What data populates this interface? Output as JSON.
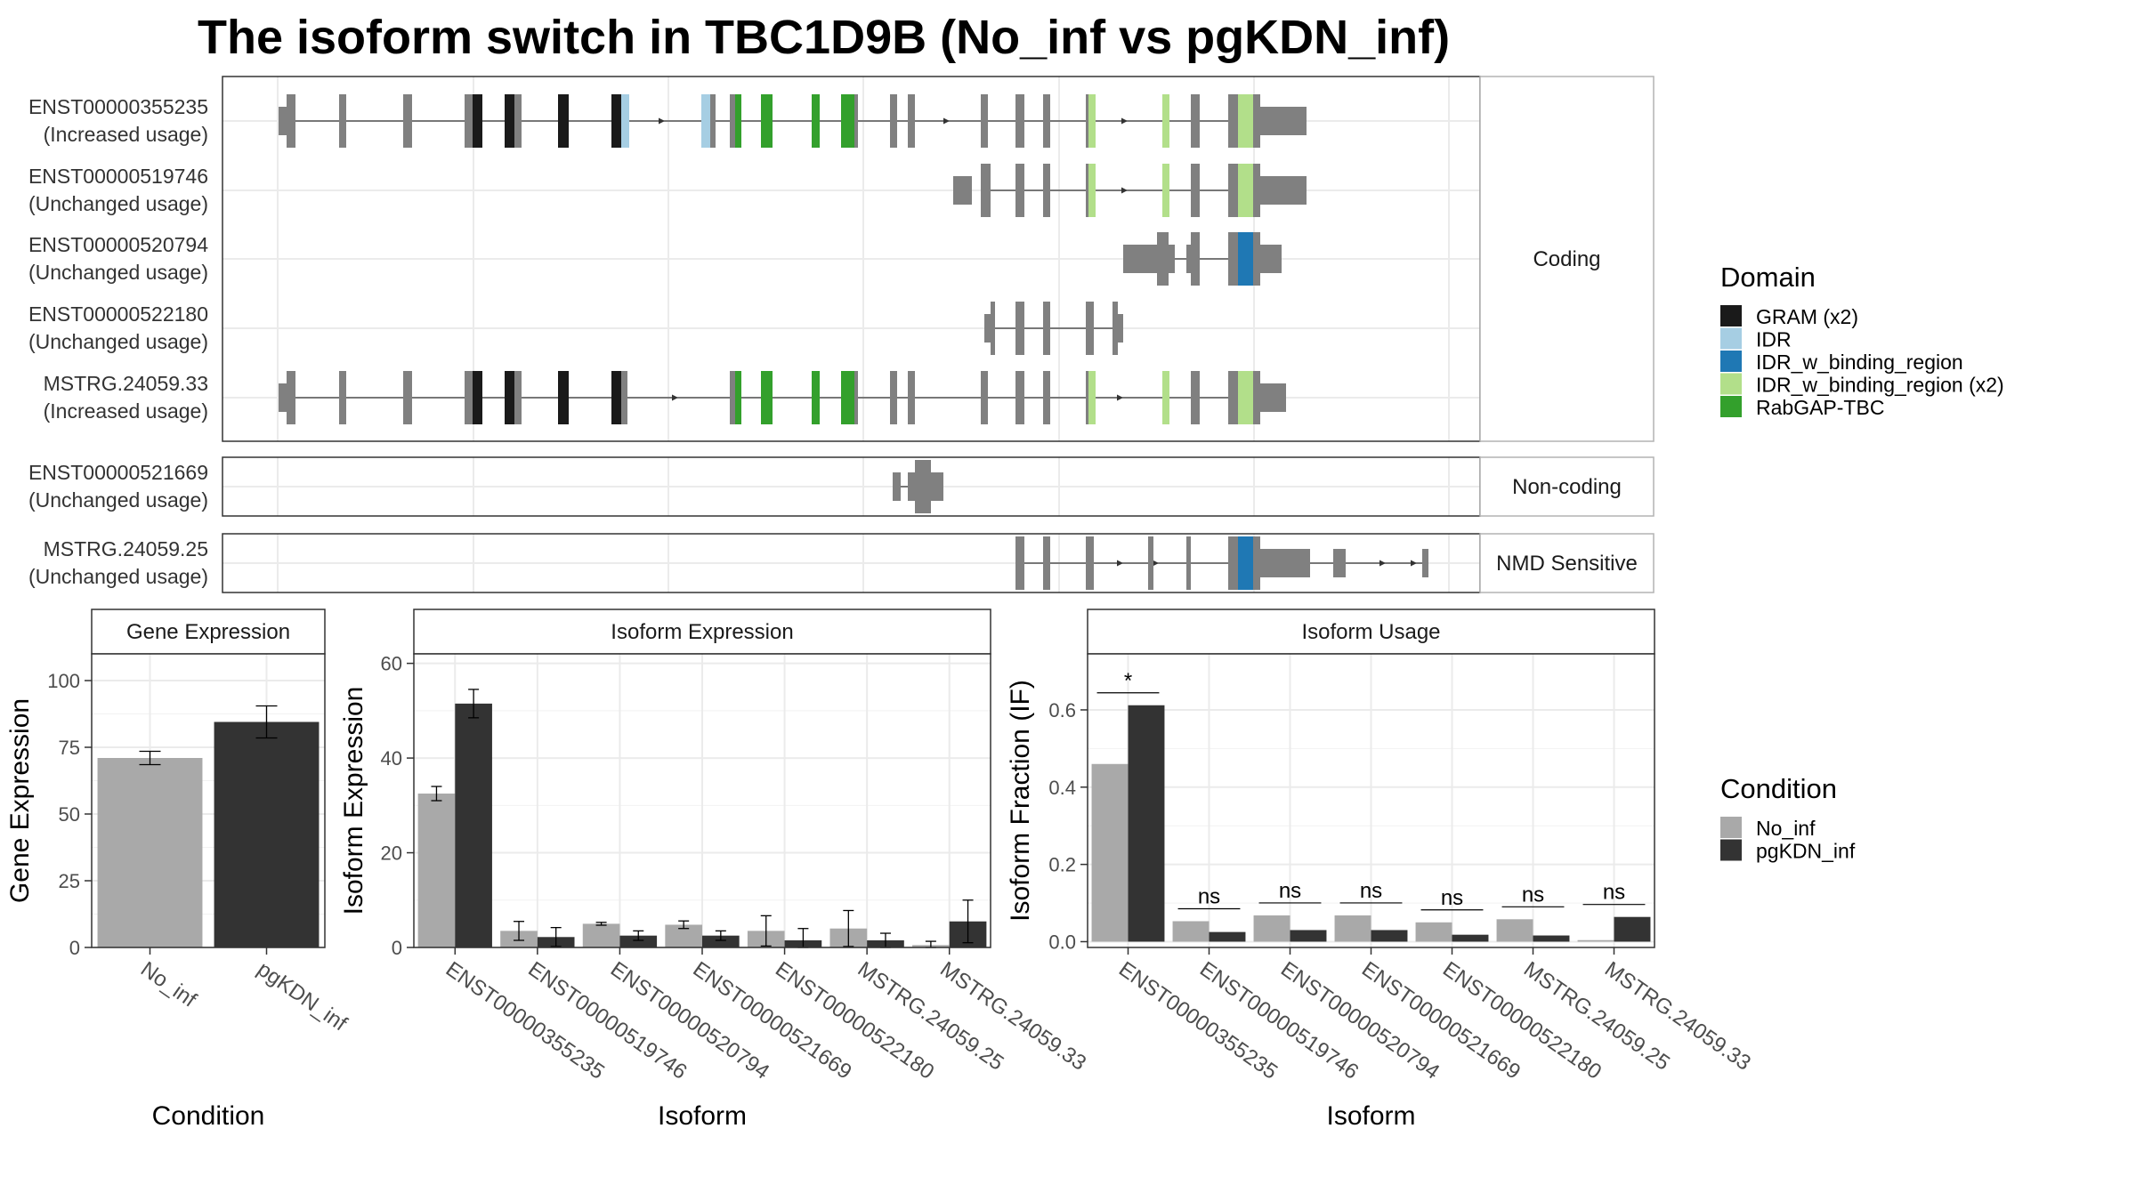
{
  "title": "The isoform switch in TBC1D9B (No_inf vs pgKDN_inf)",
  "colors": {
    "exon": "#808080",
    "no_inf": "#a9a9a9",
    "pgkdn_inf": "#333333",
    "panel_border": "#333333",
    "grid": "#ebebeb",
    "strip_bg": "#ffffff"
  },
  "structure": {
    "groups": [
      {
        "label": "Coding",
        "isoforms": [
          {
            "id": "ENST00000355235",
            "status": "(Increased usage)"
          },
          {
            "id": "ENST00000519746",
            "status": "(Unchanged usage)"
          },
          {
            "id": "ENST00000520794",
            "status": "(Unchanged usage)"
          },
          {
            "id": "ENST00000522180",
            "status": "(Unchanged usage)"
          },
          {
            "id": "MSTRG.24059.33",
            "status": "(Increased usage)"
          }
        ]
      },
      {
        "label": "Non-coding",
        "isoforms": [
          {
            "id": "ENST00000521669",
            "status": "(Unchanged usage)"
          }
        ]
      },
      {
        "label": "NMD Sensitive",
        "isoforms": [
          {
            "id": "MSTRG.24059.25",
            "status": "(Unchanged usage)"
          }
        ]
      }
    ],
    "domain_legend": {
      "title": "Domain",
      "items": [
        {
          "label": "GRAM (x2)",
          "color": "#1a1a1a"
        },
        {
          "label": "IDR",
          "color": "#a6cee3"
        },
        {
          "label": "IDR_w_binding_region",
          "color": "#1f78b4"
        },
        {
          "label": "IDR_w_binding_region (x2)",
          "color": "#b2df8a"
        },
        {
          "label": "RabGAP-TBC",
          "color": "#33a02c"
        }
      ]
    }
  },
  "chart_data": [
    {
      "type": "bar",
      "title": "Gene Expression",
      "xlabel": "Condition",
      "ylabel": "Gene Expression",
      "ylim": [
        0,
        110
      ],
      "yticks": [
        0,
        25,
        50,
        75,
        100
      ],
      "categories": [
        "No_inf",
        "pgKDN_inf"
      ],
      "values": [
        71,
        84.5
      ],
      "errors": [
        2.5,
        6
      ],
      "grid": true
    },
    {
      "type": "bar",
      "title": "Isoform Expression",
      "xlabel": "Isoform",
      "ylabel": "Isoform Expression",
      "ylim": [
        0,
        62
      ],
      "yticks": [
        0,
        20,
        40,
        60
      ],
      "categories": [
        "ENST00000355235",
        "ENST00000519746",
        "ENST00000520794",
        "ENST00000521669",
        "ENST00000522180",
        "MSTRG.24059.25",
        "MSTRG.24059.33"
      ],
      "series": [
        {
          "name": "No_inf",
          "values": [
            32.5,
            3.5,
            5,
            4.8,
            3.5,
            4,
            0.5
          ],
          "errors": [
            1.5,
            2,
            0.3,
            0.8,
            3.2,
            3.8,
            0.8
          ]
        },
        {
          "name": "pgKDN_inf",
          "values": [
            51.5,
            2.2,
            2.5,
            2.5,
            1.5,
            1.5,
            5.5
          ],
          "errors": [
            3,
            2,
            1,
            1,
            2.5,
            1.5,
            4.5
          ]
        }
      ],
      "grid": true
    },
    {
      "type": "bar",
      "title": "Isoform Usage",
      "xlabel": "Isoform",
      "ylabel": "Isoform Fraction (IF)",
      "ylim": [
        -0.015,
        0.745
      ],
      "yticks": [
        0.0,
        0.2,
        0.4,
        0.6
      ],
      "yticklabels": [
        "0.0",
        "0.2",
        "0.4",
        "0.6"
      ],
      "categories": [
        "ENST00000355235",
        "ENST00000519746",
        "ENST00000520794",
        "ENST00000521669",
        "ENST00000522180",
        "MSTRG.24059.25",
        "MSTRG.24059.33"
      ],
      "series": [
        {
          "name": "No_inf",
          "values": [
            0.46,
            0.053,
            0.068,
            0.068,
            0.05,
            0.058,
            0.004
          ]
        },
        {
          "name": "pgKDN_inf",
          "values": [
            0.612,
            0.025,
            0.03,
            0.03,
            0.018,
            0.016,
            0.064
          ]
        }
      ],
      "significance": [
        "*",
        "ns",
        "ns",
        "ns",
        "ns",
        "ns",
        "ns"
      ],
      "grid": true
    }
  ],
  "condition_legend": {
    "title": "Condition",
    "items": [
      {
        "label": "No_inf",
        "color": "#a9a9a9"
      },
      {
        "label": "pgKDN_inf",
        "color": "#333333"
      }
    ]
  }
}
